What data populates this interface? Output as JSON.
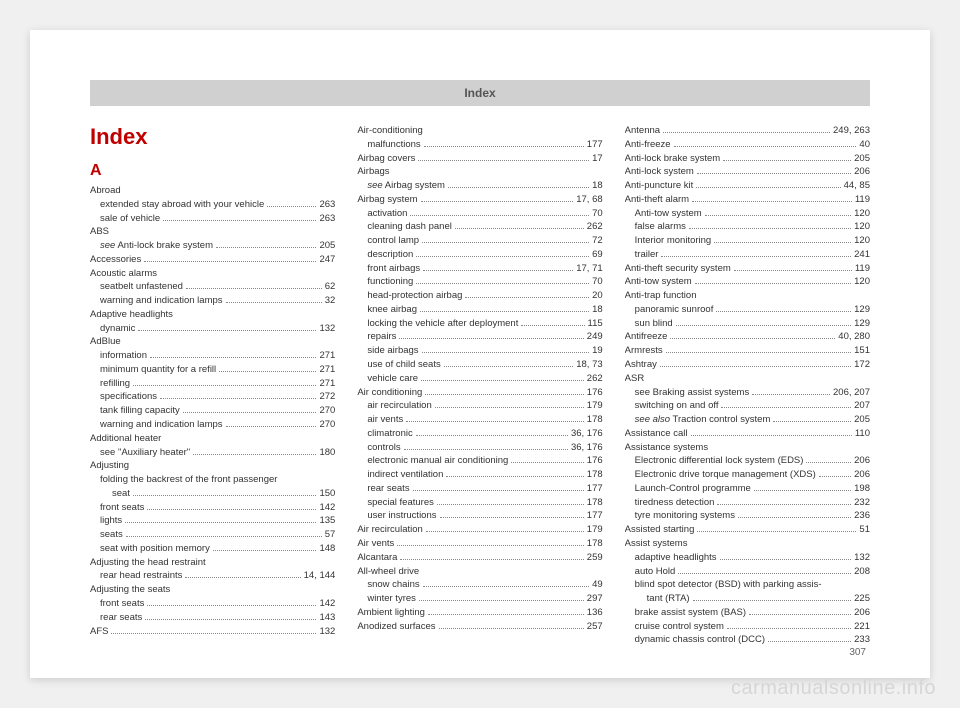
{
  "header": "Index",
  "title": "Index",
  "section_letter": "A",
  "page_number": "307",
  "watermark": "carmanualsonline.info",
  "columns": [
    [
      {
        "type": "title"
      },
      {
        "type": "letter"
      },
      {
        "label": "Abroad",
        "nopg": true
      },
      {
        "label": "extended stay abroad with your vehicle",
        "page": "263",
        "sub": true
      },
      {
        "label": "sale of vehicle",
        "page": "263",
        "sub": true
      },
      {
        "label": "ABS",
        "nopg": true
      },
      {
        "label_html": "<span class='ital'>see</span> Anti-lock brake system",
        "page": "205",
        "sub": true
      },
      {
        "label": "Accessories",
        "page": "247"
      },
      {
        "label": "Acoustic alarms",
        "nopg": true
      },
      {
        "label": "seatbelt unfastened",
        "page": "62",
        "sub": true
      },
      {
        "label": "warning and indication lamps",
        "page": "32",
        "sub": true
      },
      {
        "label": "Adaptive headlights",
        "nopg": true
      },
      {
        "label": "dynamic",
        "page": "132",
        "sub": true
      },
      {
        "label": "AdBlue",
        "nopg": true
      },
      {
        "label": "information",
        "page": "271",
        "sub": true
      },
      {
        "label": "minimum quantity for a refill",
        "page": "271",
        "sub": true
      },
      {
        "label": "refilling",
        "page": "271",
        "sub": true
      },
      {
        "label": "specifications",
        "page": "272",
        "sub": true
      },
      {
        "label": "tank filling capacity",
        "page": "270",
        "sub": true
      },
      {
        "label": "warning and indication lamps",
        "page": "270",
        "sub": true
      },
      {
        "label": "Additional heater",
        "nopg": true
      },
      {
        "label": "see \"Auxiliary heater\"",
        "page": "180",
        "sub": true
      },
      {
        "label": "Adjusting",
        "nopg": true
      },
      {
        "label": "folding the backrest of the front passenger",
        "nopg": true,
        "sub": true
      },
      {
        "label": "seat",
        "page": "150",
        "sub": true,
        "extra_indent": true
      },
      {
        "label": "front seats",
        "page": "142",
        "sub": true
      },
      {
        "label": "lights",
        "page": "135",
        "sub": true
      },
      {
        "label": "seats",
        "page": "57",
        "sub": true
      },
      {
        "label": "seat with position memory",
        "page": "148",
        "sub": true
      },
      {
        "label": "Adjusting the head restraint",
        "nopg": true
      },
      {
        "label": "rear head restraints",
        "page": "14, 144",
        "sub": true
      },
      {
        "label": "Adjusting the seats",
        "nopg": true
      },
      {
        "label": "front seats",
        "page": "142",
        "sub": true
      },
      {
        "label": "rear seats",
        "page": "143",
        "sub": true
      },
      {
        "label": "AFS",
        "page": "132"
      }
    ],
    [
      {
        "label": "Air-conditioning",
        "nopg": true
      },
      {
        "label": "malfunctions",
        "page": "177",
        "sub": true
      },
      {
        "label": "Airbag covers",
        "page": "17"
      },
      {
        "label": "Airbags",
        "nopg": true
      },
      {
        "label_html": "<span class='ital'>see</span> Airbag system",
        "page": "18",
        "sub": true
      },
      {
        "label": "Airbag system",
        "page": "17, 68"
      },
      {
        "label": "activation",
        "page": "70",
        "sub": true
      },
      {
        "label": "cleaning dash panel",
        "page": "262",
        "sub": true
      },
      {
        "label": "control lamp",
        "page": "72",
        "sub": true
      },
      {
        "label": "description",
        "page": "69",
        "sub": true
      },
      {
        "label": "front airbags",
        "page": "17, 71",
        "sub": true
      },
      {
        "label": "functioning",
        "page": "70",
        "sub": true
      },
      {
        "label": "head-protection airbag",
        "page": "20",
        "sub": true
      },
      {
        "label": "knee airbag",
        "page": "18",
        "sub": true
      },
      {
        "label": "locking the vehicle after deployment",
        "page": "115",
        "sub": true
      },
      {
        "label": "repairs",
        "page": "249",
        "sub": true
      },
      {
        "label": "side airbags",
        "page": "19",
        "sub": true
      },
      {
        "label": "use of child seats",
        "page": "18, 73",
        "sub": true
      },
      {
        "label": "vehicle care",
        "page": "262",
        "sub": true
      },
      {
        "label": "Air conditioning",
        "page": "176"
      },
      {
        "label": "air recirculation",
        "page": "179",
        "sub": true
      },
      {
        "label": "air vents",
        "page": "178",
        "sub": true
      },
      {
        "label": "climatronic",
        "page": "36, 176",
        "sub": true
      },
      {
        "label": "controls",
        "page": "36, 176",
        "sub": true
      },
      {
        "label": "electronic manual air conditioning",
        "page": "176",
        "sub": true
      },
      {
        "label": "indirect ventilation",
        "page": "178",
        "sub": true
      },
      {
        "label": "rear seats",
        "page": "177",
        "sub": true
      },
      {
        "label": "special features",
        "page": "178",
        "sub": true
      },
      {
        "label": "user instructions",
        "page": "177",
        "sub": true
      },
      {
        "label": "Air recirculation",
        "page": "179"
      },
      {
        "label": "Air vents",
        "page": "178"
      },
      {
        "label": "Alcantara",
        "page": "259"
      },
      {
        "label": "All-wheel drive",
        "nopg": true
      },
      {
        "label": "snow chains",
        "page": "49",
        "sub": true
      },
      {
        "label": "winter tyres",
        "page": "297",
        "sub": true
      },
      {
        "label": "Ambient lighting",
        "page": "136"
      },
      {
        "label": "Anodized surfaces",
        "page": "257"
      }
    ],
    [
      {
        "label": "Antenna",
        "page": "249, 263"
      },
      {
        "label": "Anti-freeze",
        "page": "40"
      },
      {
        "label": "Anti-lock brake system",
        "page": "205"
      },
      {
        "label": "Anti-lock system",
        "page": "206"
      },
      {
        "label": "Anti-puncture kit",
        "page": "44, 85"
      },
      {
        "label": "Anti-theft alarm",
        "page": "119"
      },
      {
        "label": "Anti-tow system",
        "page": "120",
        "sub": true
      },
      {
        "label": "false alarms",
        "page": "120",
        "sub": true
      },
      {
        "label": "Interior monitoring",
        "page": "120",
        "sub": true
      },
      {
        "label": "trailer",
        "page": "241",
        "sub": true
      },
      {
        "label": "Anti-theft security system",
        "page": "119"
      },
      {
        "label": "Anti-tow system",
        "page": "120"
      },
      {
        "label": "Anti-trap function",
        "nopg": true
      },
      {
        "label": "panoramic sunroof",
        "page": "129",
        "sub": true
      },
      {
        "label": "sun blind",
        "page": "129",
        "sub": true
      },
      {
        "label": "Antifreeze",
        "page": "40, 280"
      },
      {
        "label": "Armrests",
        "page": "151"
      },
      {
        "label": "Ashtray",
        "page": "172"
      },
      {
        "label": "ASR",
        "nopg": true
      },
      {
        "label": "see Braking assist systems",
        "page": "206, 207",
        "sub": true
      },
      {
        "label": "switching on and off",
        "page": "207",
        "sub": true
      },
      {
        "label_html": "<span class='ital'>see also</span> Traction control system",
        "page": "205",
        "sub": true
      },
      {
        "label": "Assistance call",
        "page": "110"
      },
      {
        "label": "Assistance systems",
        "nopg": true
      },
      {
        "label": "Electronic differential lock system (EDS)",
        "page": "206",
        "sub": true
      },
      {
        "label": "Electronic drive torque management (XDS)",
        "page": "206",
        "sub": true
      },
      {
        "label": "Launch-Control programme",
        "page": "198",
        "sub": true
      },
      {
        "label": "tiredness detection",
        "page": "232",
        "sub": true
      },
      {
        "label": "tyre monitoring systems",
        "page": "236",
        "sub": true
      },
      {
        "label": "Assisted starting",
        "page": "51"
      },
      {
        "label": "Assist systems",
        "nopg": true
      },
      {
        "label": "adaptive headlights",
        "page": "132",
        "sub": true
      },
      {
        "label": "auto Hold",
        "page": "208",
        "sub": true
      },
      {
        "label": "blind spot detector (BSD) with parking assis-",
        "nopg": true,
        "sub": true
      },
      {
        "label": "tant (RTA)",
        "page": "225",
        "sub": true,
        "extra_indent": true
      },
      {
        "label": "brake assist system (BAS)",
        "page": "206",
        "sub": true
      },
      {
        "label": "cruise control system",
        "page": "221",
        "sub": true
      },
      {
        "label": "dynamic chassis control (DCC)",
        "page": "233",
        "sub": true
      }
    ]
  ]
}
